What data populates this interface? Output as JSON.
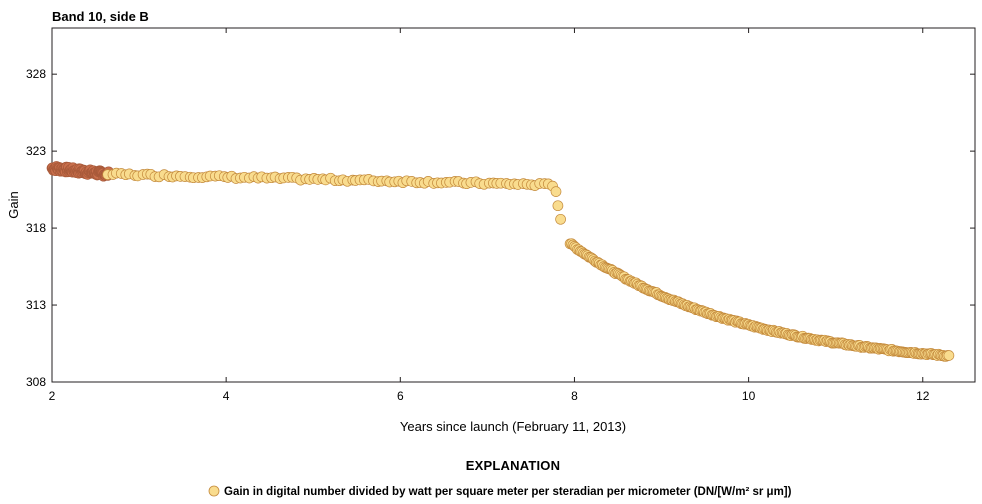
{
  "chart_data": {
    "type": "scatter",
    "title": "Band 10, side B",
    "xlabel": "Years since launch (February 11, 2013)",
    "ylabel": "Gain",
    "xlim": [
      2,
      12.6
    ],
    "ylim": [
      308,
      331
    ],
    "x_ticks": [
      2,
      4,
      6,
      8,
      10,
      12
    ],
    "y_ticks": [
      308,
      313,
      318,
      323,
      328
    ],
    "grid": false,
    "legend_position": "bottom-center",
    "explanation_heading": "EXPLANATION",
    "series": [
      {
        "name": "Gain in digital number divided by watt per square meter per steradian per micrometer (DN/[W/m² sr μm])",
        "marker_fill": "#f9dc8e",
        "marker_edge": "#c48a3c",
        "dense_fill": "#c96f4c",
        "segments": [
          {
            "x_start": 2.0,
            "x_end": 2.65,
            "y_start": 321.9,
            "y_end": 321.5,
            "count": 90,
            "style": "dense"
          },
          {
            "x_start": 2.65,
            "x_end": 7.75,
            "y_start": 321.5,
            "y_end": 320.8,
            "count": 105,
            "style": "normal"
          },
          {
            "x_start": 7.78,
            "x_end": 7.85,
            "y_start": 320.4,
            "y_end": 318.6,
            "count": 3,
            "style": "normal"
          },
          {
            "x_start": 7.95,
            "x_end": 12.3,
            "y_start": 317.0,
            "y_end": 309.7,
            "count": 260,
            "style": "decay"
          }
        ],
        "points": [
          [
            2.0,
            321.9
          ],
          [
            2.3,
            321.7
          ],
          [
            2.6,
            321.5
          ],
          [
            3.0,
            321.4
          ],
          [
            3.5,
            321.3
          ],
          [
            4.0,
            321.2
          ],
          [
            4.5,
            321.1
          ],
          [
            5.0,
            321.0
          ],
          [
            5.5,
            320.95
          ],
          [
            6.0,
            320.9
          ],
          [
            6.5,
            320.85
          ],
          [
            7.0,
            320.8
          ],
          [
            7.5,
            320.8
          ],
          [
            7.7,
            320.8
          ],
          [
            7.8,
            320.4
          ],
          [
            7.82,
            319.9
          ],
          [
            7.85,
            318.6
          ],
          [
            8.0,
            316.8
          ],
          [
            8.25,
            315.9
          ],
          [
            8.5,
            315.0
          ],
          [
            8.75,
            314.3
          ],
          [
            9.0,
            313.6
          ],
          [
            9.25,
            313.1
          ],
          [
            9.5,
            312.6
          ],
          [
            9.75,
            312.1
          ],
          [
            10.0,
            311.7
          ],
          [
            10.25,
            311.4
          ],
          [
            10.5,
            311.1
          ],
          [
            10.75,
            310.8
          ],
          [
            11.0,
            310.5
          ],
          [
            11.25,
            310.3
          ],
          [
            11.5,
            310.1
          ],
          [
            11.75,
            309.9
          ],
          [
            12.0,
            309.8
          ],
          [
            12.3,
            309.7
          ]
        ]
      }
    ]
  }
}
